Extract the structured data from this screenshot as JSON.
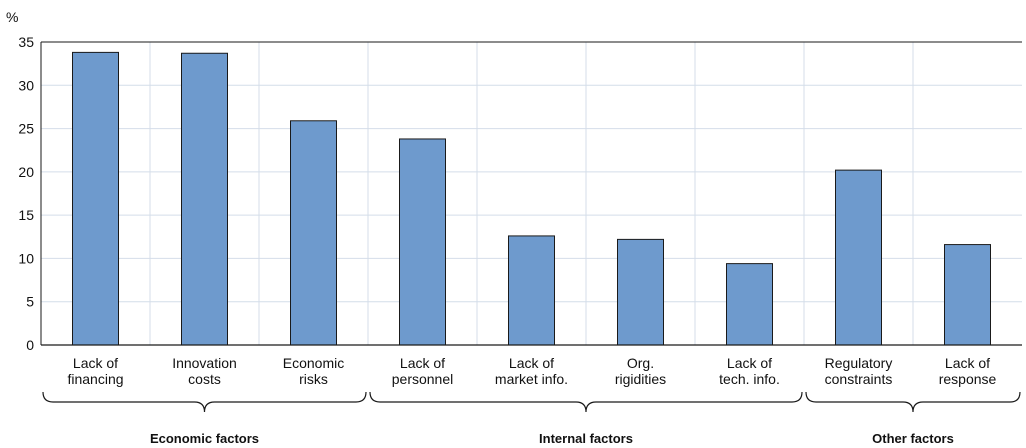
{
  "chart_data": {
    "type": "bar",
    "unit_label": "%",
    "categories": [
      [
        "Lack of",
        "financing"
      ],
      [
        "Innovation",
        "costs"
      ],
      [
        "Economic",
        "risks"
      ],
      [
        "Lack of",
        "personnel"
      ],
      [
        "Lack of",
        "market info."
      ],
      [
        "Org.",
        "rigidities"
      ],
      [
        "Lack of",
        "tech. info."
      ],
      [
        "Regulatory",
        "constraints"
      ],
      [
        "Lack of",
        "response"
      ]
    ],
    "values": [
      33.8,
      33.7,
      25.9,
      23.8,
      12.6,
      12.2,
      9.4,
      20.2,
      11.6
    ],
    "ylim": [
      0,
      35
    ],
    "yticks": [
      0,
      5,
      10,
      15,
      20,
      25,
      30,
      35
    ],
    "grid": true,
    "groups": [
      {
        "label": "Economic factors",
        "start": 0,
        "end": 2
      },
      {
        "label": "Internal factors",
        "start": 3,
        "end": 6
      },
      {
        "label": "Other factors",
        "start": 7,
        "end": 8
      }
    ],
    "colors": {
      "bar_fill": "#6e9acd",
      "bar_stroke": "#1a1a1a",
      "grid": "#d4dde9",
      "axis": "#1a1a1a",
      "brace": "#1a1a1a"
    }
  }
}
